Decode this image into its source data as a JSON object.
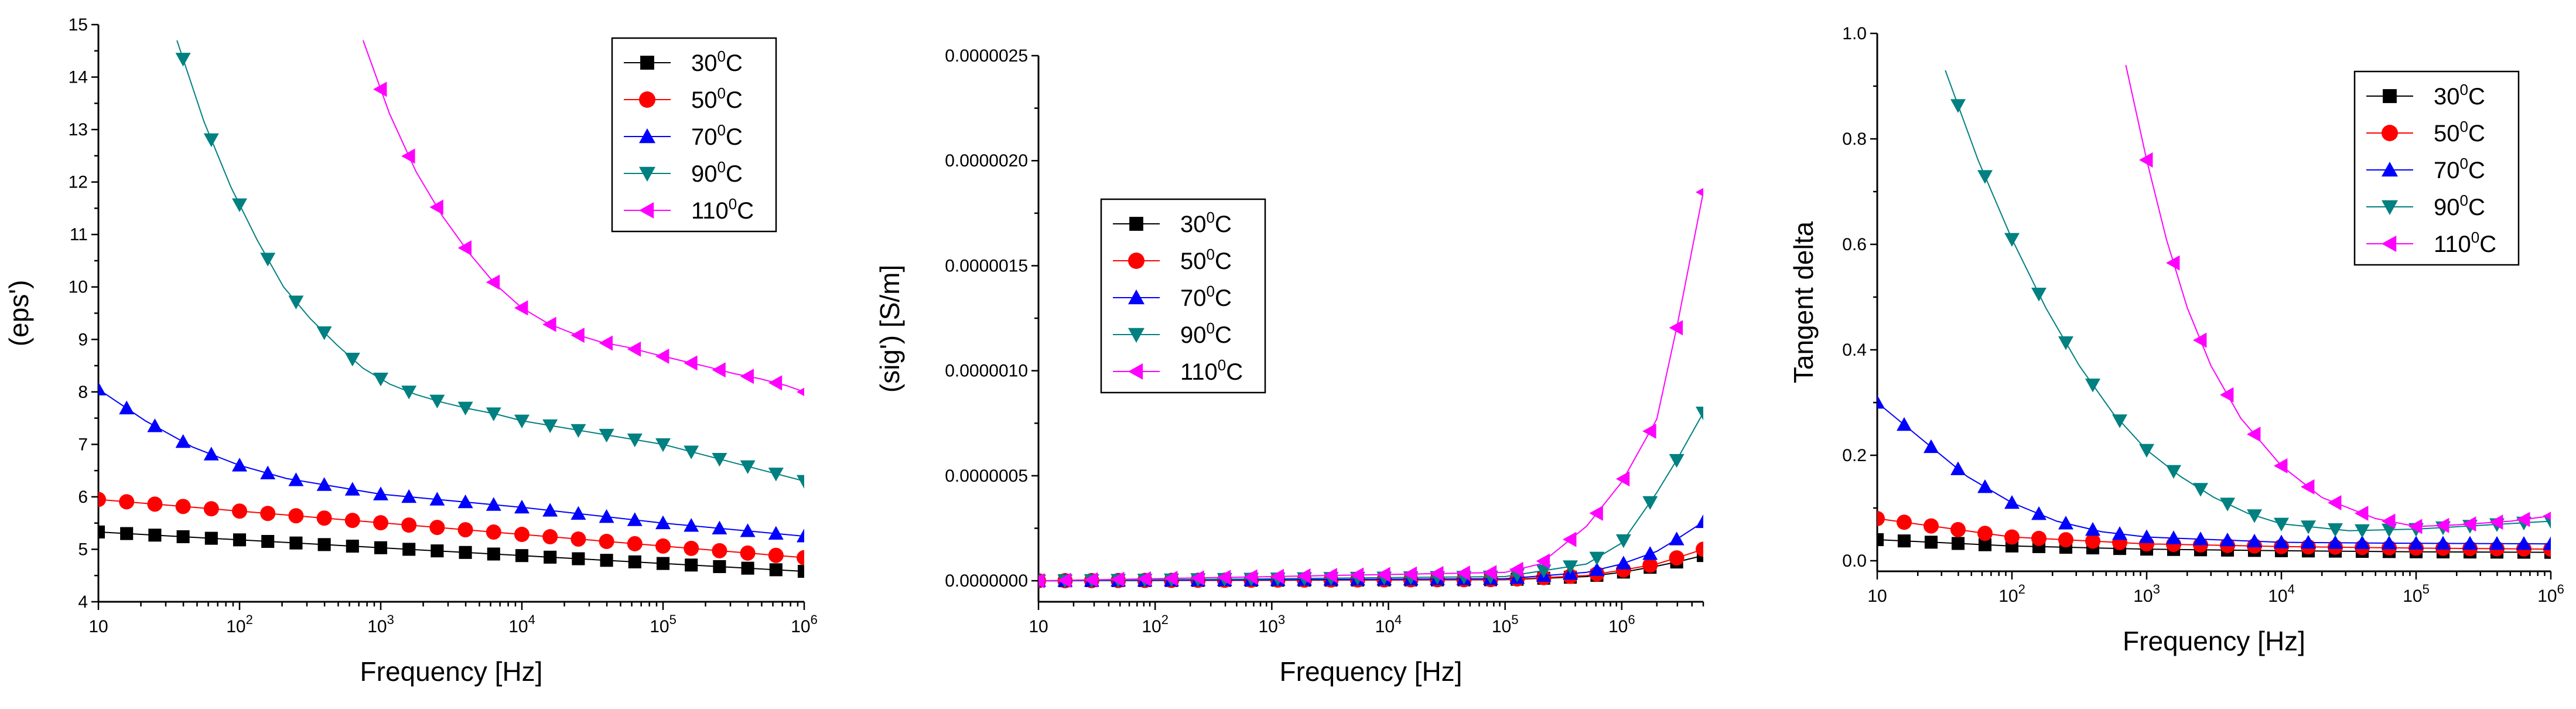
{
  "colors": {
    "30": "#000000",
    "50": "#ff0000",
    "70": "#0000ff",
    "90": "#008080",
    "110": "#ff00ff"
  },
  "chart_data": [
    {
      "type": "line",
      "name": "eps",
      "title": "",
      "xlabel": "Frequency [Hz]",
      "ylabel": "(eps')",
      "xscale": "log",
      "xlim": [
        10,
        1000000
      ],
      "ylim": [
        4,
        15
      ],
      "yticks": [
        "4",
        "5",
        "6",
        "7",
        "8",
        "9",
        "10",
        "11",
        "12",
        "13",
        "14",
        "15"
      ],
      "xticks": [
        {
          "base": "10",
          "exp": ""
        },
        {
          "base": "10",
          "exp": "2"
        },
        {
          "base": "10",
          "exp": "3"
        },
        {
          "base": "10",
          "exp": "4"
        },
        {
          "base": "10",
          "exp": "5"
        },
        {
          "base": "10",
          "exp": "6"
        }
      ],
      "legend_position": "top-right",
      "series": [
        {
          "name": "30",
          "label_num": "30",
          "label_sup": "0",
          "label_unit": "C",
          "marker": "square",
          "x": [
            10,
            1000000
          ],
          "y": [
            5.33,
            4.58
          ]
        },
        {
          "name": "50",
          "label_num": "50",
          "label_sup": "0",
          "label_unit": "C",
          "marker": "circle",
          "x": [
            10,
            1000000
          ],
          "y": [
            5.95,
            4.84
          ]
        },
        {
          "name": "70",
          "label_num": "70",
          "label_sup": "0",
          "label_unit": "C",
          "marker": "triangle-up",
          "x": [
            10,
            21.5,
            46.4,
            100,
            215,
            464,
            1000,
            10000,
            100000,
            1000000
          ],
          "y": [
            8.05,
            7.45,
            6.95,
            6.6,
            6.35,
            6.2,
            6.05,
            5.8,
            5.5,
            5.25
          ]
        },
        {
          "name": "90",
          "label_num": "90",
          "label_sup": "0",
          "label_unit": "C",
          "marker": "triangle-down",
          "x": [
            36,
            56,
            87,
            133,
            205,
            316,
            487,
            750,
            1155,
            1778,
            2738,
            4217,
            6494,
            10000,
            100000,
            1000000
          ],
          "y": [
            14.7,
            13.15,
            11.9,
            10.9,
            10.0,
            9.4,
            8.9,
            8.45,
            8.15,
            7.95,
            7.8,
            7.68,
            7.58,
            7.45,
            7.0,
            6.3
          ]
        },
        {
          "name": "110",
          "label_num": "110",
          "label_sup": "0",
          "label_unit": "C",
          "marker": "triangle-left",
          "x": [
            750,
            1155,
            1778,
            2738,
            4217,
            6494,
            10000,
            15400,
            23700,
            36500,
            56200,
            86600,
            133000,
            205000,
            316000,
            487000,
            750000,
            1000000
          ],
          "y": [
            14.7,
            13.3,
            12.2,
            11.35,
            10.65,
            10.05,
            9.6,
            9.3,
            9.1,
            8.95,
            8.85,
            8.72,
            8.6,
            8.48,
            8.35,
            8.25,
            8.12,
            8.0
          ]
        }
      ]
    },
    {
      "type": "line",
      "name": "sig",
      "title": "",
      "xlabel": "Frequency [Hz]",
      "ylabel": "(sig') [S/m]",
      "xscale": "log",
      "xlim": [
        10,
        5000000
      ],
      "ylim": [
        -1e-07,
        2.5e-06
      ],
      "yticks": [
        "0.0000000",
        "0.0000005",
        "0.0000010",
        "0.0000015",
        "0.0000020",
        "0.0000025"
      ],
      "xticks": [
        {
          "base": "10",
          "exp": ""
        },
        {
          "base": "10",
          "exp": "2"
        },
        {
          "base": "10",
          "exp": "3"
        },
        {
          "base": "10",
          "exp": "4"
        },
        {
          "base": "10",
          "exp": "5"
        },
        {
          "base": "10",
          "exp": "6"
        }
      ],
      "legend_position": "upper-left",
      "series": [
        {
          "name": "30",
          "label_num": "30",
          "label_sup": "0",
          "label_unit": "C",
          "marker": "square",
          "x": [
            10,
            100000,
            500000,
            1000000,
            2000000,
            3000000,
            5000000
          ],
          "y": [
            0,
            5e-09,
            2e-08,
            4e-08,
            7e-08,
            9e-08,
            1.2e-07
          ]
        },
        {
          "name": "50",
          "label_num": "50",
          "label_sup": "0",
          "label_unit": "C",
          "marker": "circle",
          "x": [
            10,
            100000,
            500000,
            1000000,
            2000000,
            3000000,
            5000000
          ],
          "y": [
            0,
            6e-09,
            2.5e-08,
            5e-08,
            8e-08,
            1.1e-07,
            1.5e-07
          ]
        },
        {
          "name": "70",
          "label_num": "70",
          "label_sup": "0",
          "label_unit": "C",
          "marker": "triangle-up",
          "x": [
            10,
            100000,
            500000,
            1000000,
            2000000,
            3000000,
            5000000
          ],
          "y": [
            0,
            1e-08,
            4e-08,
            8e-08,
            1.4e-07,
            2e-07,
            2.8e-07
          ]
        },
        {
          "name": "90",
          "label_num": "90",
          "label_sup": "0",
          "label_unit": "C",
          "marker": "triangle-down",
          "x": [
            10,
            100000,
            500000,
            1000000,
            2000000,
            3000000,
            5000000
          ],
          "y": [
            0,
            2e-08,
            8e-08,
            1.8e-07,
            4.2e-07,
            5.8e-07,
            8e-07
          ]
        },
        {
          "name": "110",
          "label_num": "110",
          "label_sup": "0",
          "label_unit": "C",
          "marker": "triangle-left",
          "x": [
            10,
            100000,
            200000,
            500000,
            1000000,
            2000000,
            3000000,
            5000000
          ],
          "y": [
            0,
            4e-08,
            8e-08,
            2.6e-07,
            4.7e-07,
            7.7e-07,
            1.22e-06,
            1.85e-06
          ]
        }
      ]
    },
    {
      "type": "line",
      "name": "tan",
      "title": "",
      "xlabel": "Frequency [Hz]",
      "ylabel": "Tangent delta",
      "xscale": "log",
      "xlim": [
        10,
        1000000
      ],
      "ylim": [
        -0.02,
        1.0
      ],
      "yticks": [
        "0.0",
        "0.2",
        "0.4",
        "0.6",
        "0.8",
        "1.0"
      ],
      "xticks": [
        {
          "base": "10",
          "exp": ""
        },
        {
          "base": "10",
          "exp": "2"
        },
        {
          "base": "10",
          "exp": "3"
        },
        {
          "base": "10",
          "exp": "4"
        },
        {
          "base": "10",
          "exp": "5"
        },
        {
          "base": "10",
          "exp": "6"
        }
      ],
      "legend_position": "top-right",
      "series": [
        {
          "name": "30",
          "label_num": "30",
          "label_sup": "0",
          "label_unit": "C",
          "marker": "square",
          "x": [
            10,
            100,
            1000,
            10000,
            100000,
            1000000
          ],
          "y": [
            0.04,
            0.028,
            0.022,
            0.019,
            0.017,
            0.016
          ]
        },
        {
          "name": "50",
          "label_num": "50",
          "label_sup": "0",
          "label_unit": "C",
          "marker": "circle",
          "x": [
            10,
            100,
            1000,
            10000,
            100000,
            1000000
          ],
          "y": [
            0.08,
            0.045,
            0.032,
            0.027,
            0.024,
            0.022
          ]
        },
        {
          "name": "70",
          "label_num": "70",
          "label_sup": "0",
          "label_unit": "C",
          "marker": "triangle-up",
          "x": [
            10,
            21.5,
            46.4,
            100,
            215,
            464,
            1000,
            10000,
            100000,
            1000000
          ],
          "y": [
            0.3,
            0.23,
            0.16,
            0.11,
            0.075,
            0.055,
            0.045,
            0.035,
            0.033,
            0.032
          ]
        },
        {
          "name": "90",
          "label_num": "90",
          "label_sup": "0",
          "label_unit": "C",
          "marker": "triangle-down",
          "x": [
            32,
            56,
            100,
            178,
            316,
            562,
            1000,
            1778,
            3162,
            5623,
            10000,
            31623,
            100000,
            1000000
          ],
          "y": [
            0.93,
            0.76,
            0.61,
            0.48,
            0.37,
            0.28,
            0.21,
            0.16,
            0.12,
            0.09,
            0.07,
            0.057,
            0.06,
            0.075
          ]
        },
        {
          "name": "110",
          "label_num": "110",
          "label_sup": "0",
          "label_unit": "C",
          "marker": "triangle-left",
          "x": [
            700,
            1000,
            1400,
            2000,
            3000,
            5000,
            10000,
            20000,
            50000,
            100000,
            200000,
            500000,
            1000000
          ],
          "y": [
            0.94,
            0.76,
            0.61,
            0.48,
            0.37,
            0.27,
            0.18,
            0.12,
            0.08,
            0.065,
            0.068,
            0.075,
            0.085
          ]
        }
      ]
    }
  ]
}
